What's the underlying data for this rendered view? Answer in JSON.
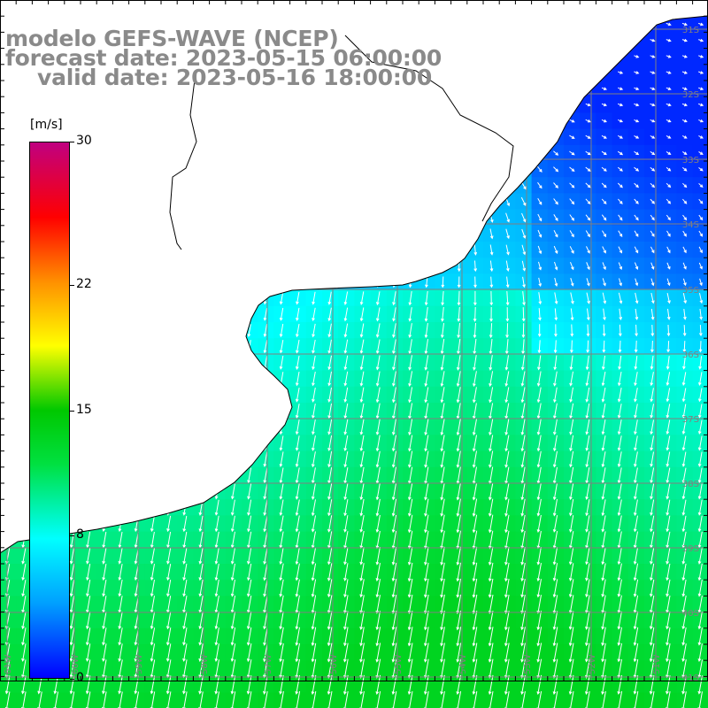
{
  "title": {
    "line1": "modelo GEFS-WAVE (NCEP)",
    "line2": "forecast date: 2023-05-15 06:00:00",
    "line3": "valid date: 2023-05-16 18:00:00"
  },
  "colorbar": {
    "unit": "[m/s]",
    "labels": [
      "30",
      "22",
      "15",
      "8",
      "0"
    ],
    "values": [
      30,
      22,
      15,
      8,
      0
    ],
    "min": 0,
    "max": 30,
    "colors": [
      "#0000ff",
      "#00a0ff",
      "#00ffff",
      "#00e040",
      "#00c800",
      "#ffff00",
      "#ff9000",
      "#ff0000",
      "#c00080"
    ]
  },
  "map": {
    "variable": "wind speed",
    "lat_labels": [
      "31S",
      "32S",
      "33S",
      "34S",
      "35S",
      "36S",
      "37S",
      "38S",
      "39S",
      "40S",
      "41S"
    ],
    "lon_labels": [
      "61W",
      "60W",
      "59W",
      "58W",
      "57W",
      "56W",
      "55W",
      "54W",
      "53W",
      "52W",
      "51W"
    ],
    "colors": {
      "land": "#ffffff",
      "coast": "#000000",
      "grid": "#808080",
      "vector": "#ffffff"
    }
  }
}
